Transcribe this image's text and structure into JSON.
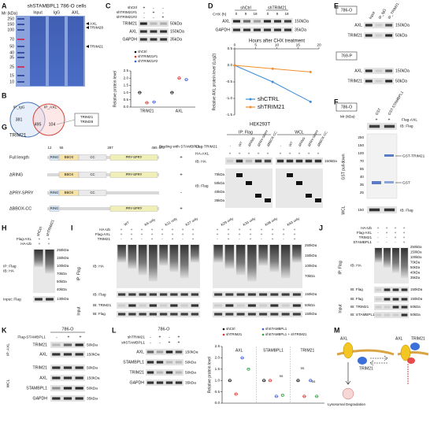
{
  "panels": {
    "A": {
      "letter": "A",
      "title": "shSTAMBPL1 786-O cells",
      "mr": "Mr (kDa)",
      "markers": [
        250,
        150,
        100,
        70,
        50,
        40,
        35,
        25,
        15,
        10
      ],
      "lanes": [
        "Input",
        "IgG",
        "AXL"
      ],
      "arrows": [
        "AXL",
        "TRIM28",
        "TRIM21"
      ]
    },
    "B": {
      "letter": "B",
      "sets": [
        "IP_IgG",
        "IP_AXL"
      ],
      "counts": [
        381,
        495,
        104
      ],
      "hits": [
        "TRIM21",
        "TRIM28"
      ]
    },
    "C": {
      "letter": "C",
      "conditions": [
        "shCtrl",
        "shTRIM21#1",
        "shTRIM21#2"
      ],
      "signs": [
        [
          "+",
          "-",
          "-"
        ],
        [
          "-",
          "+",
          "-"
        ],
        [
          "-",
          "-",
          "+"
        ]
      ],
      "blots": [
        "TRIM21",
        "AXL",
        "GAPDH"
      ],
      "sizes": [
        "50kDa",
        "150kDa",
        "35kDa"
      ]
    },
    "D": {
      "letter": "D",
      "chx": "CHX (h)",
      "groups": [
        "shCtrl",
        "shTRIM21"
      ],
      "times": [
        [
          0,
          9,
          18
        ],
        [
          0,
          9,
          18
        ]
      ],
      "blots": [
        "AXL",
        "GAPDH"
      ],
      "sizes": [
        "150kDa",
        "35kDa"
      ]
    },
    "E": {
      "letter": "E",
      "cells": [
        "786-O",
        "769-P"
      ],
      "lanes": [
        "Input",
        "IP_IgG",
        "IP_TRIM21"
      ],
      "blots": [
        [
          "AXL",
          "TRIM21"
        ],
        [
          "AXL",
          "TRIM21"
        ]
      ],
      "sizes": [
        [
          "150kDa",
          "50kDa"
        ],
        [
          "150kDa",
          "50kDa"
        ]
      ]
    },
    "F": {
      "letter": "F",
      "cell": "786-O",
      "mr": "Mr (kDa)",
      "lanes": [
        "GST",
        "GST-STAMBPL1"
      ],
      "flag_axl": "Flag-AXL",
      "flag_signs": [
        "+",
        "+"
      ],
      "ib_top": "IB: Flag",
      "markers": [
        250,
        150,
        100,
        70,
        55,
        40,
        35,
        25
      ],
      "bands": [
        "GST-TRIM21",
        "GST"
      ],
      "pulldown": "GST pull-down",
      "wcl": "WCL",
      "wcl_marker": 150,
      "ib_bottom": "IB: Flag"
    },
    "G": {
      "letter": "G",
      "protein": "TRIM21",
      "binding": "Binding with STAMBPL1",
      "positions": [
        12,
        55,
        287,
        465,
        475
      ],
      "constructs": [
        {
          "name": "Full length",
          "domains": [
            "RING",
            "BBOX",
            "CC",
            "PRY-SPRY"
          ],
          "binds": "+"
        },
        {
          "name": "ΔRING",
          "domains": [
            "BBOX",
            "CC",
            "PRY-SPRY"
          ],
          "binds": "+"
        },
        {
          "name": "ΔPRY-SPRY",
          "domains": [
            "RING",
            "BBOX",
            "CC"
          ],
          "binds": "-"
        },
        {
          "name": "ΔBBOX-CC",
          "domains": [
            "RING",
            "PRY-SPRY"
          ],
          "binds": "+"
        }
      ],
      "cells": "HEK293T",
      "ip": "IP: Flag",
      "wcl": "WCL",
      "flag_trim21": "Flag-TRIM21",
      "ha_axl": "HA-AXL",
      "lanes": [
        [
          "-",
          "WT",
          "ΔRING",
          "ΔPRY-SPRY",
          "ΔBBOX-CC"
        ],
        [
          "-",
          "WT",
          "ΔRING",
          "ΔPRY-SPRY",
          "ΔBBOX-CC"
        ]
      ],
      "ha_signs": [
        [
          "+",
          "+",
          "+",
          "+",
          "+"
        ],
        [
          "+",
          "+",
          "+",
          "+",
          "+"
        ]
      ],
      "ib_ha": "IB: HA",
      "ha_size": "150kDa",
      "ib_flag": "IB: Flag",
      "flag_sizes": [
        "70kDa",
        "50kDa",
        "40kDa",
        "35kDa"
      ]
    },
    "H": {
      "letter": "H",
      "groups": [
        "shCtrl",
        "shTRIM21"
      ],
      "rows": [
        {
          "label": "Flag-AXL",
          "signs": [
            "+",
            "+"
          ]
        },
        {
          "label": "HA-Ub",
          "signs": [
            "+",
            "+"
          ]
        }
      ],
      "ip": "IP: Flag",
      "ib": "IB: HA",
      "sizes": [
        "250kDa",
        "150kDa",
        "100kDa",
        "70kDa",
        "50kDa",
        "40kDa"
      ],
      "input": "Input: Flag",
      "input_size": "130kDa"
    },
    "I": {
      "letter": "I",
      "rows": [
        {
          "label": "HA-Ub",
          "signs": [
            [
              "+",
              "+",
              "+",
              "+",
              "+",
              "+",
              "+",
              "+"
            ],
            [
              "+",
              "+",
              "+",
              "+",
              "+",
              "+",
              "+",
              "+"
            ]
          ]
        },
        {
          "label": "Flag-AXL",
          "signs": [
            [
              "+",
              "+",
              "+",
              "+",
              "+",
              "+",
              "+",
              "+"
            ],
            [
              "+",
              "+",
              "+",
              "+",
              "+",
              "+",
              "+",
              "+"
            ]
          ]
        },
        {
          "label": "TRIM21",
          "signs": [
            [
              "-",
              "+",
              "-",
              "+",
              "-",
              "+",
              "-",
              "+"
            ],
            [
              "-",
              "+",
              "-",
              "+",
              "-",
              "+",
              "-",
              "+"
            ]
          ]
        }
      ],
      "lanes": [
        [
          "WT",
          "K6 only",
          "K11 only",
          "K27 only"
        ],
        [
          "K29 only",
          "K33 only",
          "K48 only",
          "K63 only"
        ]
      ],
      "ip": "IP: Flag",
      "input": "Input",
      "ib_ha": "IB: HA",
      "ha_sizes": [
        "250kDa",
        "150kDa",
        "100kDa",
        "70kDa"
      ],
      "ib_flag": "IB: Flag",
      "flag_size": "150kDa",
      "input_blots": [
        "IB: TRIM21",
        "IB: Flag"
      ],
      "input_sizes": [
        "50kDa",
        "150kDa"
      ]
    },
    "J": {
      "letter": "J",
      "rows": [
        {
          "label": "HA-Ub",
          "signs": [
            "+",
            "+",
            "+",
            "+"
          ]
        },
        {
          "label": "Flag-AXL",
          "signs": [
            "-",
            "+",
            "+",
            "+"
          ]
        },
        {
          "label": "TRIM21",
          "signs": [
            "-",
            "-",
            "+",
            "+"
          ]
        },
        {
          "label": "STAMBPL1",
          "signs": [
            "-",
            "-",
            "-",
            "+"
          ]
        }
      ],
      "ip": "IP: Flag",
      "input": "Input",
      "ib_ha": "IB: HA",
      "ha_sizes": [
        "250kDa",
        "150kDa",
        "100kDa",
        "70kDa",
        "50kDa",
        "40kDa",
        "35kDa"
      ],
      "ib_flag": "IB: Flag",
      "flag_size": "150kDa",
      "input_blots": [
        "IB: Flag",
        "IB: TRIM21",
        "IB: STAMBPL1"
      ],
      "input_sizes": [
        "150kDa",
        "50kDa",
        "50kDa"
      ]
    },
    "K": {
      "letter": "K",
      "cell": "786-O",
      "flag": "Flag-STAMBPL1",
      "signs": [
        "-",
        "+",
        "+"
      ],
      "ip": "IP: AXL",
      "ip_blots": [
        "TRIM21",
        "AXL"
      ],
      "ip_sizes": [
        "50kDa",
        "150kDa"
      ],
      "wcl": "WCL",
      "wcl_blots": [
        "TRIM21",
        "AXL",
        "STAMBPL1",
        "GAPDH"
      ],
      "wcl_sizes": [
        "50kDa",
        "150kDa",
        "50kDa",
        "35kDa"
      ]
    },
    "L": {
      "letter": "L",
      "cell": "786-O",
      "rows": [
        {
          "label": "shTRIM21",
          "signs": [
            "-",
            "+",
            "-",
            "+"
          ]
        },
        {
          "label": "shSTAMBPL1",
          "signs": [
            "-",
            "-",
            "+",
            "+"
          ]
        }
      ],
      "blots": [
        "AXL",
        "STAMBPL1",
        "TRIM21",
        "GAPDH"
      ],
      "sizes": [
        "150kDa",
        "50kDa",
        "50kDa",
        "35kDa"
      ]
    },
    "M": {
      "letter": "M",
      "left": [
        "AXL",
        "TRIM21"
      ],
      "right": [
        "AXL",
        "TRIM21"
      ],
      "fate": "Lysosomal Degradation"
    }
  },
  "chart_data": [
    {
      "type": "scatter",
      "ylabel": "Relative protein level",
      "categories": [
        "TRIM21",
        "AXL"
      ],
      "ylim": [
        0,
        2.5
      ],
      "yticks": [
        {
          "value": 0,
          "label": "0.0"
        },
        0.5,
        {
          "value": 1,
          "label": "1.0"
        },
        1.5,
        {
          "value": 2,
          "label": "2.0"
        },
        2.5
      ],
      "series": [
        {
          "name": "shCtrl",
          "color": "#111111",
          "values": [
            1.0,
            1.0
          ]
        },
        {
          "name": "shTRIM21#1",
          "color": "#e0302e",
          "values": [
            0.3,
            2.0
          ]
        },
        {
          "name": "shTRIM21#2",
          "color": "#3b5bdb",
          "values": [
            0.35,
            1.9
          ]
        }
      ]
    },
    {
      "type": "line",
      "title": "Hours after CHX treatment",
      "ylabel": "Relative AXL protein level (Log2)",
      "x": [
        0,
        9,
        18
      ],
      "xlim": [
        0,
        20
      ],
      "xticks": [
        0,
        5,
        10,
        15,
        20
      ],
      "ylim": [
        -1.5,
        0.5
      ],
      "yticks": [
        0.5,
        {
          "value": 0,
          "label": "0.0"
        },
        -0.5,
        {
          "value": -1,
          "label": "-1.0"
        },
        -1.5
      ],
      "series": [
        {
          "name": "shCTRL",
          "color": "#3a8fd9",
          "values": [
            0,
            -0.5,
            -1.1
          ]
        },
        {
          "name": "shTRIM21",
          "color": "#f28e2b",
          "values": [
            0,
            -0.1,
            -0.2
          ]
        }
      ]
    },
    {
      "type": "scatter",
      "ylabel": "Relative protein level",
      "categories": [
        "AXL",
        "STAMBPL1",
        "TRIM21"
      ],
      "ylim": [
        0,
        2.5
      ],
      "yticks": [
        {
          "value": 0,
          "label": "0.0"
        },
        0.5,
        {
          "value": 1,
          "label": "1.0"
        },
        1.5,
        {
          "value": 2,
          "label": "2.0"
        },
        2.5
      ],
      "series": [
        {
          "name": "shCtrl",
          "color": "#111111",
          "values": [
            1.0,
            1.0,
            1.0
          ]
        },
        {
          "name": "shTRIM21",
          "color": "#e0302e",
          "values": [
            0.4,
            1.0,
            0.3
          ]
        },
        {
          "name": "shSTAMBPL1",
          "color": "#3b5bdb",
          "values": [
            2.0,
            0.3,
            1.0
          ]
        },
        {
          "name": "shSTAMBPL1 + shTRIM21",
          "color": "#2f9e44",
          "values": [
            1.5,
            0.35,
            0.3
          ]
        }
      ],
      "annotations": [
        "ns",
        "ns",
        "ns"
      ]
    }
  ]
}
